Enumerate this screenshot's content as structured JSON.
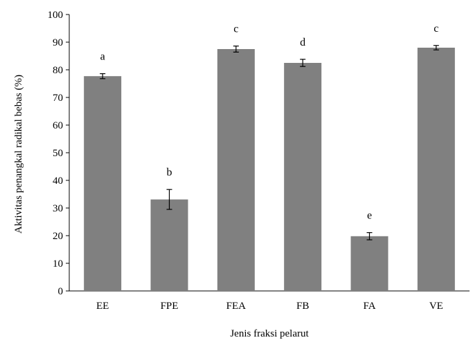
{
  "chart_data": {
    "type": "bar",
    "title": "",
    "xlabel": "Jenis fraksi pelarut",
    "ylabel": "Aktivitas penangkal radikal bebas (%)",
    "ylim": [
      0,
      100
    ],
    "yticks": [
      0,
      10,
      20,
      30,
      40,
      50,
      60,
      70,
      80,
      90,
      100
    ],
    "categories": [
      "EE",
      "FPE",
      "FEA",
      "FB",
      "FA",
      "VE"
    ],
    "series": [
      {
        "values": [
          77.7,
          33.1,
          87.5,
          82.5,
          19.8,
          88.0
        ],
        "error": [
          0.9,
          3.6,
          1.1,
          1.3,
          1.3,
          0.8
        ],
        "significance": [
          "a",
          "b",
          "c",
          "d",
          "e",
          "c"
        ]
      }
    ],
    "bar_color": "#808080",
    "grid": false,
    "legend": "none"
  }
}
